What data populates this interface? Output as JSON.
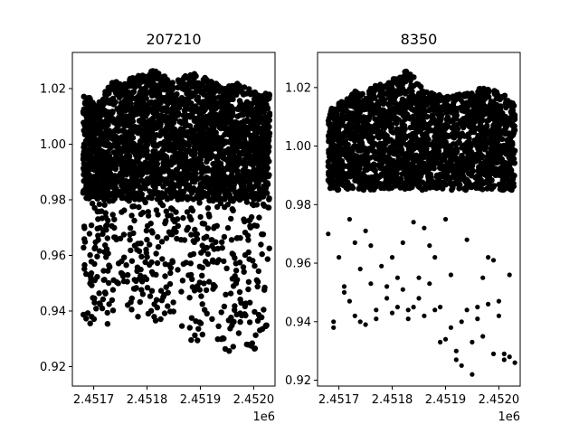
{
  "chart_data": [
    {
      "type": "scatter",
      "title": "207210",
      "xlabel": "",
      "ylabel": "",
      "x_offset_label": "1e6",
      "xlim": [
        2.45166,
        2.45204
      ],
      "ylim": [
        0.913,
        1.033
      ],
      "xticks": [
        2.4517,
        2.4518,
        2.4519,
        2.452
      ],
      "xtick_labels": [
        "2.4517",
        "2.4518",
        "2.4519",
        "2.4520"
      ],
      "yticks": [
        0.92,
        0.94,
        0.96,
        0.98,
        1.0,
        1.02
      ],
      "ytick_labels": [
        "0.92",
        "0.94",
        "0.96",
        "0.98",
        "1.00",
        "1.02"
      ],
      "marker_color": "#000000",
      "x_range": [
        2.45168,
        2.45203
      ],
      "upper_envelope": [
        [
          2.45168,
          1.018
        ],
        [
          2.45171,
          1.015
        ],
        [
          2.45173,
          1.022
        ],
        [
          2.45176,
          1.023
        ],
        [
          2.45179,
          1.025
        ],
        [
          2.45182,
          1.027
        ],
        [
          2.45185,
          1.022
        ],
        [
          2.45188,
          1.026
        ],
        [
          2.45191,
          1.024
        ],
        [
          2.45194,
          1.021
        ],
        [
          2.45197,
          1.022
        ],
        [
          2.452,
          1.019
        ],
        [
          2.45203,
          1.018
        ]
      ],
      "lower_envelope": [
        [
          2.45168,
          0.934
        ],
        [
          2.45171,
          0.935
        ],
        [
          2.45174,
          0.935
        ],
        [
          2.45177,
          0.936
        ],
        [
          2.4518,
          0.937
        ],
        [
          2.45183,
          0.936
        ],
        [
          2.45186,
          0.934
        ],
        [
          2.45189,
          0.926
        ],
        [
          2.45192,
          0.919
        ],
        [
          2.45195,
          0.924
        ],
        [
          2.45198,
          0.927
        ],
        [
          2.452,
          0.925
        ],
        [
          2.45203,
          0.929
        ]
      ],
      "dense_band": [
        0.98,
        1.015
      ]
    },
    {
      "type": "scatter",
      "title": "8350",
      "xlabel": "",
      "ylabel": "",
      "x_offset_label": "1e6",
      "xlim": [
        2.45166,
        2.45204
      ],
      "ylim": [
        0.918,
        1.032
      ],
      "xticks": [
        2.4517,
        2.4518,
        2.4519,
        2.452
      ],
      "xtick_labels": [
        "2.4517",
        "2.4518",
        "2.4519",
        "2.4520"
      ],
      "yticks": [
        0.92,
        0.94,
        0.96,
        0.98,
        1.0,
        1.02
      ],
      "ytick_labels": [
        "0.92",
        "0.94",
        "0.96",
        "0.98",
        "1.00",
        "1.02"
      ],
      "marker_color": "#000000",
      "x_range": [
        2.45168,
        2.45203
      ],
      "upper_envelope": [
        [
          2.45168,
          1.012
        ],
        [
          2.45172,
          1.018
        ],
        [
          2.45175,
          1.02
        ],
        [
          2.45179,
          1.022
        ],
        [
          2.45183,
          1.026
        ],
        [
          2.45186,
          1.019
        ],
        [
          2.4519,
          1.017
        ],
        [
          2.45193,
          1.018
        ],
        [
          2.45197,
          1.02
        ],
        [
          2.452,
          1.019
        ],
        [
          2.45203,
          1.015
        ]
      ],
      "dense_band": [
        0.985,
        1.015
      ],
      "sparse_points": [
        [
          2.45168,
          0.97
        ],
        [
          2.45169,
          0.94
        ],
        [
          2.45169,
          0.938
        ],
        [
          2.4517,
          0.962
        ],
        [
          2.45171,
          0.952
        ],
        [
          2.45171,
          0.95
        ],
        [
          2.45172,
          0.947
        ],
        [
          2.45172,
          0.975
        ],
        [
          2.45173,
          0.967
        ],
        [
          2.45173,
          0.942
        ],
        [
          2.45174,
          0.958
        ],
        [
          2.45174,
          0.94
        ],
        [
          2.45175,
          0.971
        ],
        [
          2.45175,
          0.939
        ],
        [
          2.45176,
          0.953
        ],
        [
          2.45176,
          0.966
        ],
        [
          2.45177,
          0.944
        ],
        [
          2.45177,
          0.941
        ],
        [
          2.45178,
          0.959
        ],
        [
          2.45179,
          0.948
        ],
        [
          2.45179,
          0.952
        ],
        [
          2.4518,
          0.943
        ],
        [
          2.4518,
          0.962
        ],
        [
          2.45181,
          0.955
        ],
        [
          2.45181,
          0.945
        ],
        [
          2.45182,
          0.951
        ],
        [
          2.45182,
          0.967
        ],
        [
          2.45183,
          0.944
        ],
        [
          2.45183,
          0.941
        ],
        [
          2.45184,
          0.974
        ],
        [
          2.45184,
          0.945
        ],
        [
          2.45185,
          0.955
        ],
        [
          2.45185,
          0.948
        ],
        [
          2.45186,
          0.972
        ],
        [
          2.45186,
          0.942
        ],
        [
          2.45187,
          0.966
        ],
        [
          2.45187,
          0.953
        ],
        [
          2.45188,
          0.962
        ],
        [
          2.45188,
          0.944
        ],
        [
          2.45189,
          0.933
        ],
        [
          2.45189,
          0.945
        ],
        [
          2.4519,
          0.934
        ],
        [
          2.4519,
          0.975
        ],
        [
          2.45191,
          0.956
        ],
        [
          2.45191,
          0.938
        ],
        [
          2.45192,
          0.927
        ],
        [
          2.45192,
          0.93
        ],
        [
          2.45193,
          0.94
        ],
        [
          2.45193,
          0.925
        ],
        [
          2.45194,
          0.944
        ],
        [
          2.45194,
          0.968
        ],
        [
          2.45195,
          0.933
        ],
        [
          2.45195,
          0.922
        ],
        [
          2.45196,
          0.945
        ],
        [
          2.45196,
          0.941
        ],
        [
          2.45197,
          0.935
        ],
        [
          2.45197,
          0.955
        ],
        [
          2.45198,
          0.962
        ],
        [
          2.45198,
          0.946
        ],
        [
          2.45199,
          0.929
        ],
        [
          2.45199,
          0.961
        ],
        [
          2.452,
          0.942
        ],
        [
          2.452,
          0.947
        ],
        [
          2.45201,
          0.929
        ],
        [
          2.45201,
          0.927
        ],
        [
          2.45202,
          0.956
        ],
        [
          2.45202,
          0.928
        ],
        [
          2.45203,
          0.926
        ]
      ]
    }
  ]
}
